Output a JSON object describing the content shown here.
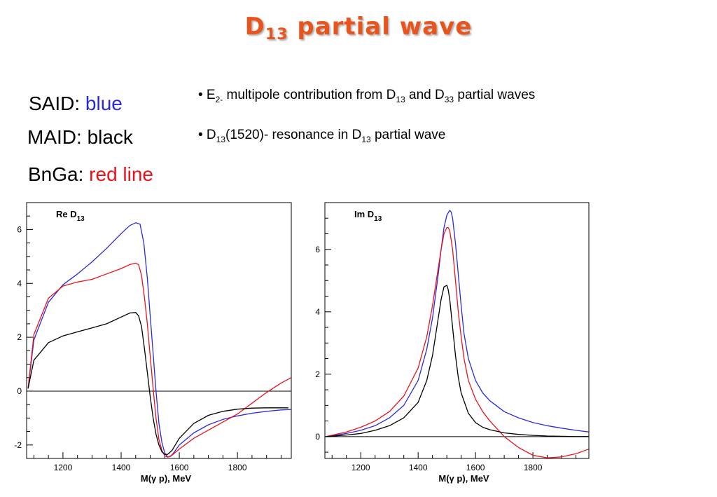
{
  "title": {
    "main": "D",
    "sub": "13",
    "rest": " partial wave"
  },
  "legend_text": {
    "said_label": "SAID: ",
    "said_value": "blue",
    "said_color": "#2b2bd6",
    "maid_label": "MAID: ",
    "maid_value": "black",
    "bnga_label": "BnGa: ",
    "bnga_value": "red line",
    "bnga_color": "#e8141b"
  },
  "bullets": [
    {
      "parts": [
        [
          "t",
          "• E"
        ],
        [
          "s",
          "2-"
        ],
        [
          "t",
          " multipole contribution from D"
        ],
        [
          "s",
          "13"
        ],
        [
          "t",
          " and D"
        ],
        [
          "s",
          "33"
        ],
        [
          "t",
          " partial waves"
        ]
      ]
    },
    {
      "parts": [
        [
          "t",
          "• D"
        ],
        [
          "s",
          "13"
        ],
        [
          "t",
          "(1520)- resonance in D"
        ],
        [
          "s",
          "13"
        ],
        [
          "t",
          " partial wave"
        ]
      ]
    }
  ],
  "colors": {
    "title": "#e8541b",
    "said": "#2b2bd6",
    "maid": "#000000",
    "bnga": "#e8141b"
  },
  "chart_data": [
    {
      "type": "line",
      "title_main": "Re D",
      "title_sub": "13",
      "xlabel": "M(γ p), MeV",
      "xlim": [
        1075,
        1985
      ],
      "ylim": [
        -2.5,
        7.0
      ],
      "xticks": [
        1200,
        1400,
        1600,
        1800
      ],
      "yticks": [
        -2,
        0,
        2,
        4,
        6
      ],
      "zero_line": true,
      "series": [
        {
          "name": "SAID",
          "color": "#2b2bd6",
          "x": [
            1080,
            1100,
            1150,
            1200,
            1250,
            1300,
            1350,
            1400,
            1430,
            1450,
            1465,
            1478,
            1490,
            1500,
            1510,
            1520,
            1530,
            1540,
            1550,
            1560,
            1570,
            1580,
            1600,
            1650,
            1700,
            1750,
            1800,
            1850,
            1900,
            1950,
            1985
          ],
          "y": [
            0.1,
            1.9,
            3.3,
            3.95,
            4.35,
            4.8,
            5.3,
            5.85,
            6.15,
            6.25,
            6.2,
            5.5,
            4.2,
            2.8,
            1.4,
            0.0,
            -1.2,
            -1.9,
            -2.3,
            -2.45,
            -2.42,
            -2.3,
            -2.0,
            -1.55,
            -1.25,
            -1.05,
            -0.92,
            -0.82,
            -0.75,
            -0.7,
            -0.68
          ]
        },
        {
          "name": "BnGa",
          "color": "#e8141b",
          "x": [
            1080,
            1100,
            1150,
            1200,
            1250,
            1300,
            1350,
            1400,
            1430,
            1450,
            1460,
            1470,
            1480,
            1490,
            1500,
            1510,
            1520,
            1530,
            1540,
            1550,
            1560,
            1575,
            1600,
            1650,
            1700,
            1750,
            1800,
            1850,
            1900,
            1950,
            1985
          ],
          "y": [
            0.1,
            2.1,
            3.45,
            3.9,
            4.05,
            4.15,
            4.35,
            4.55,
            4.7,
            4.75,
            4.7,
            4.3,
            3.5,
            2.5,
            1.3,
            0.1,
            -1.0,
            -1.8,
            -2.2,
            -2.4,
            -2.45,
            -2.38,
            -2.15,
            -1.75,
            -1.45,
            -1.15,
            -0.85,
            -0.45,
            -0.05,
            0.3,
            0.5
          ]
        },
        {
          "name": "MAID",
          "color": "#000000",
          "x": [
            1080,
            1100,
            1150,
            1200,
            1250,
            1300,
            1350,
            1400,
            1430,
            1450,
            1460,
            1470,
            1480,
            1490,
            1500,
            1510,
            1520,
            1530,
            1540,
            1550,
            1560,
            1575,
            1600,
            1650,
            1700,
            1750,
            1800,
            1850,
            1900,
            1950,
            1975
          ],
          "y": [
            0.1,
            1.15,
            1.8,
            2.05,
            2.2,
            2.35,
            2.5,
            2.75,
            2.9,
            2.92,
            2.8,
            2.4,
            1.6,
            0.7,
            -0.2,
            -1.0,
            -1.6,
            -2.0,
            -2.25,
            -2.35,
            -2.35,
            -2.2,
            -1.75,
            -1.2,
            -0.9,
            -0.75,
            -0.67,
            -0.63,
            -0.62,
            -0.62,
            -0.62
          ]
        }
      ]
    },
    {
      "type": "line",
      "title_main": "Im D",
      "title_sub": "13",
      "xlabel": "M(γ p), MeV",
      "xlim": [
        1075,
        1995
      ],
      "ylim": [
        -0.7,
        7.5
      ],
      "xticks": [
        1200,
        1400,
        1600,
        1800
      ],
      "yticks": [
        0,
        2,
        4,
        6
      ],
      "zero_line": true,
      "series": [
        {
          "name": "SAID",
          "color": "#2b2bd6",
          "x": [
            1080,
            1150,
            1200,
            1250,
            1300,
            1350,
            1400,
            1430,
            1450,
            1470,
            1480,
            1490,
            1500,
            1510,
            1515,
            1520,
            1530,
            1540,
            1550,
            1560,
            1575,
            1600,
            1625,
            1650,
            1700,
            1750,
            1800,
            1850,
            1900,
            1950,
            1995
          ],
          "y": [
            0.0,
            0.1,
            0.2,
            0.35,
            0.6,
            1.0,
            1.8,
            2.8,
            3.8,
            5.2,
            6.0,
            6.7,
            7.1,
            7.25,
            7.2,
            7.0,
            6.2,
            5.2,
            4.2,
            3.3,
            2.5,
            1.8,
            1.4,
            1.15,
            0.8,
            0.6,
            0.45,
            0.35,
            0.27,
            0.2,
            0.15
          ]
        },
        {
          "name": "BnGa",
          "color": "#e8141b",
          "x": [
            1080,
            1150,
            1200,
            1250,
            1300,
            1350,
            1400,
            1430,
            1450,
            1470,
            1480,
            1490,
            1500,
            1505,
            1510,
            1520,
            1530,
            1540,
            1550,
            1560,
            1575,
            1600,
            1625,
            1650,
            1700,
            1750,
            1800,
            1850,
            1900,
            1950,
            1995
          ],
          "y": [
            0.0,
            0.15,
            0.3,
            0.5,
            0.8,
            1.3,
            2.2,
            3.2,
            4.2,
            5.4,
            6.0,
            6.5,
            6.7,
            6.7,
            6.6,
            6.0,
            5.0,
            4.0,
            3.2,
            2.5,
            1.8,
            1.2,
            0.8,
            0.5,
            0.0,
            -0.35,
            -0.6,
            -0.68,
            -0.65,
            -0.55,
            -0.4
          ]
        },
        {
          "name": "MAID",
          "color": "#000000",
          "x": [
            1080,
            1150,
            1200,
            1250,
            1300,
            1350,
            1400,
            1430,
            1450,
            1470,
            1480,
            1490,
            1500,
            1505,
            1510,
            1520,
            1530,
            1540,
            1550,
            1575,
            1600,
            1625,
            1650,
            1700,
            1750,
            1800,
            1850,
            1900,
            1950,
            1995
          ],
          "y": [
            0.0,
            0.05,
            0.1,
            0.2,
            0.35,
            0.6,
            1.1,
            1.8,
            2.6,
            3.8,
            4.4,
            4.8,
            4.85,
            4.7,
            4.4,
            3.5,
            2.6,
            1.9,
            1.4,
            0.75,
            0.45,
            0.3,
            0.22,
            0.12,
            0.07,
            0.04,
            0.02,
            0.01,
            0.0,
            0.0
          ]
        }
      ]
    }
  ]
}
